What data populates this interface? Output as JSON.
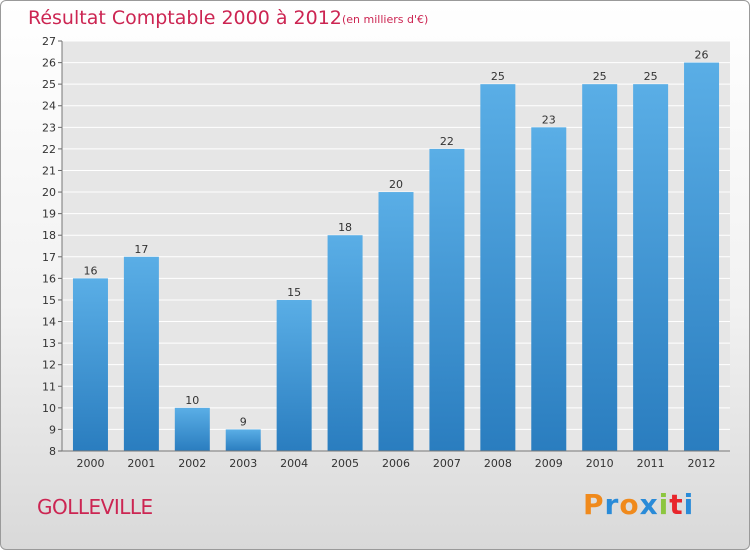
{
  "header": {
    "title": "Résultat Comptable 2000 à 2012",
    "subtitle": "(en milliers d'€)"
  },
  "footer": {
    "commune": "GOLLEVILLE",
    "logo_letters": [
      "P",
      "r",
      "o",
      "x",
      "i",
      "t",
      "i"
    ]
  },
  "colors": {
    "title": "#cc2552",
    "bar_light": "#5aaee6",
    "bar_dark": "#2a7dbf",
    "logo": [
      "#f08a1c",
      "#2a8bd8",
      "#f08a1c",
      "#2a8bd8",
      "#8cc63f",
      "#e8262c",
      "#2a8bd8"
    ]
  },
  "chart_data": {
    "type": "bar",
    "categories": [
      "2000",
      "2001",
      "2002",
      "2003",
      "2004",
      "2005",
      "2006",
      "2007",
      "2008",
      "2009",
      "2010",
      "2011",
      "2012"
    ],
    "values": [
      16,
      17,
      10,
      9,
      15,
      18,
      20,
      22,
      25,
      23,
      25,
      25,
      26
    ],
    "ylim": [
      8,
      27
    ],
    "yticks": [
      8,
      9,
      10,
      11,
      12,
      13,
      14,
      15,
      16,
      17,
      18,
      19,
      20,
      21,
      22,
      23,
      24,
      25,
      26,
      27
    ],
    "grid": true
  }
}
